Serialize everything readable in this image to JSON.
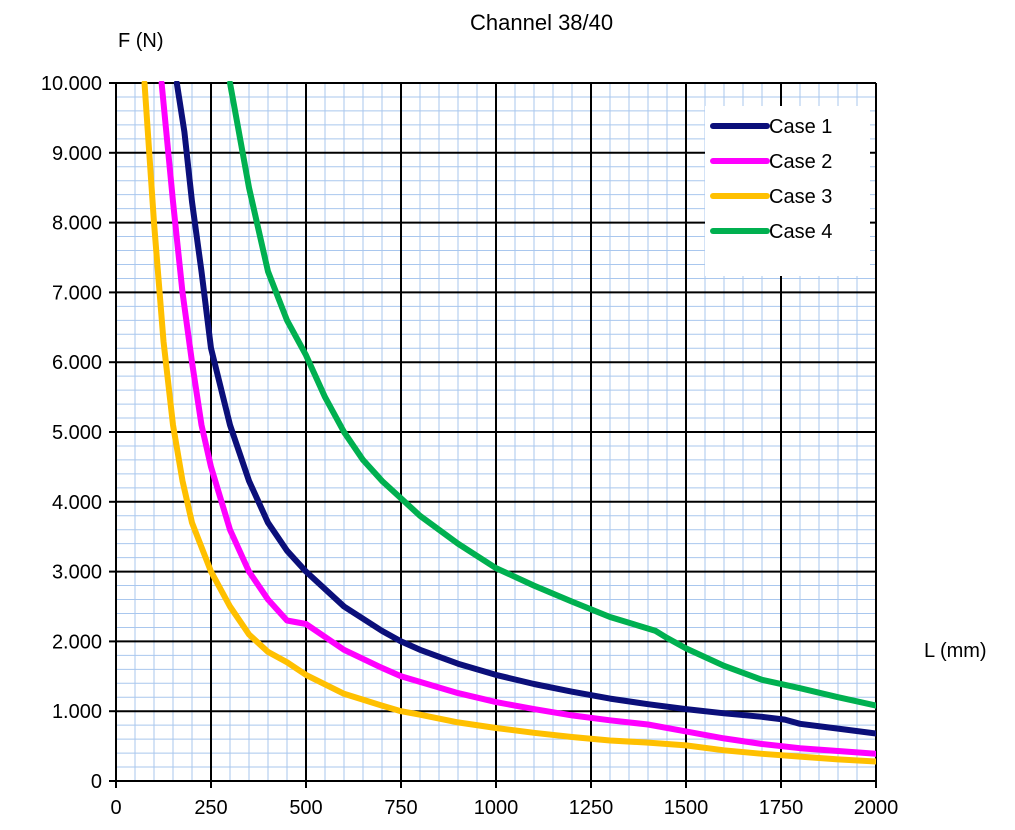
{
  "chart_data": {
    "type": "line",
    "title": "Channel 38/40",
    "xlabel": "L (mm)",
    "ylabel": "F (N)",
    "xlim": [
      0,
      2000
    ],
    "ylim": [
      0,
      10000
    ],
    "x_ticks": [
      "0",
      "250",
      "500",
      "750",
      "1000",
      "1250",
      "1500",
      "1750",
      "2000"
    ],
    "y_ticks": [
      "0",
      "1.000",
      "2.000",
      "3.000",
      "4.000",
      "5.000",
      "6.000",
      "7.000",
      "8.000",
      "9.000",
      "10.000"
    ],
    "grid": true,
    "legend_position": "top-right",
    "series": [
      {
        "name": "Case 1",
        "color": "#0b0f7a",
        "x": [
          160,
          180,
          200,
          225,
          250,
          300,
          350,
          400,
          450,
          500,
          600,
          700,
          750,
          800,
          900,
          1000,
          1100,
          1200,
          1300,
          1400,
          1500,
          1600,
          1700,
          1760,
          1800,
          1900,
          2000
        ],
        "y": [
          10000,
          9300,
          8300,
          7300,
          6200,
          5100,
          4300,
          3700,
          3300,
          3000,
          2500,
          2150,
          2000,
          1880,
          1680,
          1520,
          1390,
          1280,
          1180,
          1100,
          1030,
          970,
          920,
          880,
          820,
          750,
          680
        ]
      },
      {
        "name": "Case 2",
        "color": "#ff00ff",
        "x": [
          120,
          150,
          175,
          200,
          225,
          250,
          300,
          350,
          400,
          450,
          500,
          600,
          700,
          750,
          800,
          900,
          1000,
          1100,
          1200,
          1300,
          1400,
          1500,
          1600,
          1700,
          1800,
          1900,
          2000
        ],
        "y": [
          10000,
          8300,
          7000,
          6000,
          5100,
          4500,
          3600,
          3000,
          2600,
          2300,
          2250,
          1880,
          1620,
          1500,
          1420,
          1260,
          1130,
          1030,
          940,
          870,
          810,
          710,
          610,
          530,
          470,
          430,
          390
        ]
      },
      {
        "name": "Case 3",
        "color": "#ffc000",
        "x": [
          75,
          100,
          125,
          150,
          175,
          200,
          250,
          300,
          350,
          400,
          450,
          500,
          600,
          700,
          750,
          800,
          900,
          1000,
          1100,
          1200,
          1300,
          1400,
          1500,
          1600,
          1700,
          1800,
          1900,
          2000
        ],
        "y": [
          10000,
          8000,
          6300,
          5100,
          4300,
          3700,
          3000,
          2500,
          2100,
          1850,
          1700,
          1520,
          1250,
          1080,
          1000,
          950,
          840,
          760,
          690,
          630,
          580,
          550,
          510,
          440,
          390,
          350,
          310,
          280
        ]
      },
      {
        "name": "Case 4",
        "color": "#00b050",
        "x": [
          300,
          350,
          400,
          450,
          500,
          550,
          600,
          650,
          700,
          750,
          800,
          900,
          1000,
          1100,
          1200,
          1300,
          1420,
          1450,
          1500,
          1600,
          1700,
          1800,
          1900,
          2000
        ],
        "y": [
          10000,
          8500,
          7300,
          6600,
          6100,
          5500,
          5000,
          4600,
          4300,
          4050,
          3800,
          3400,
          3050,
          2800,
          2570,
          2350,
          2150,
          2050,
          1900,
          1650,
          1450,
          1330,
          1200,
          1080
        ]
      }
    ]
  }
}
